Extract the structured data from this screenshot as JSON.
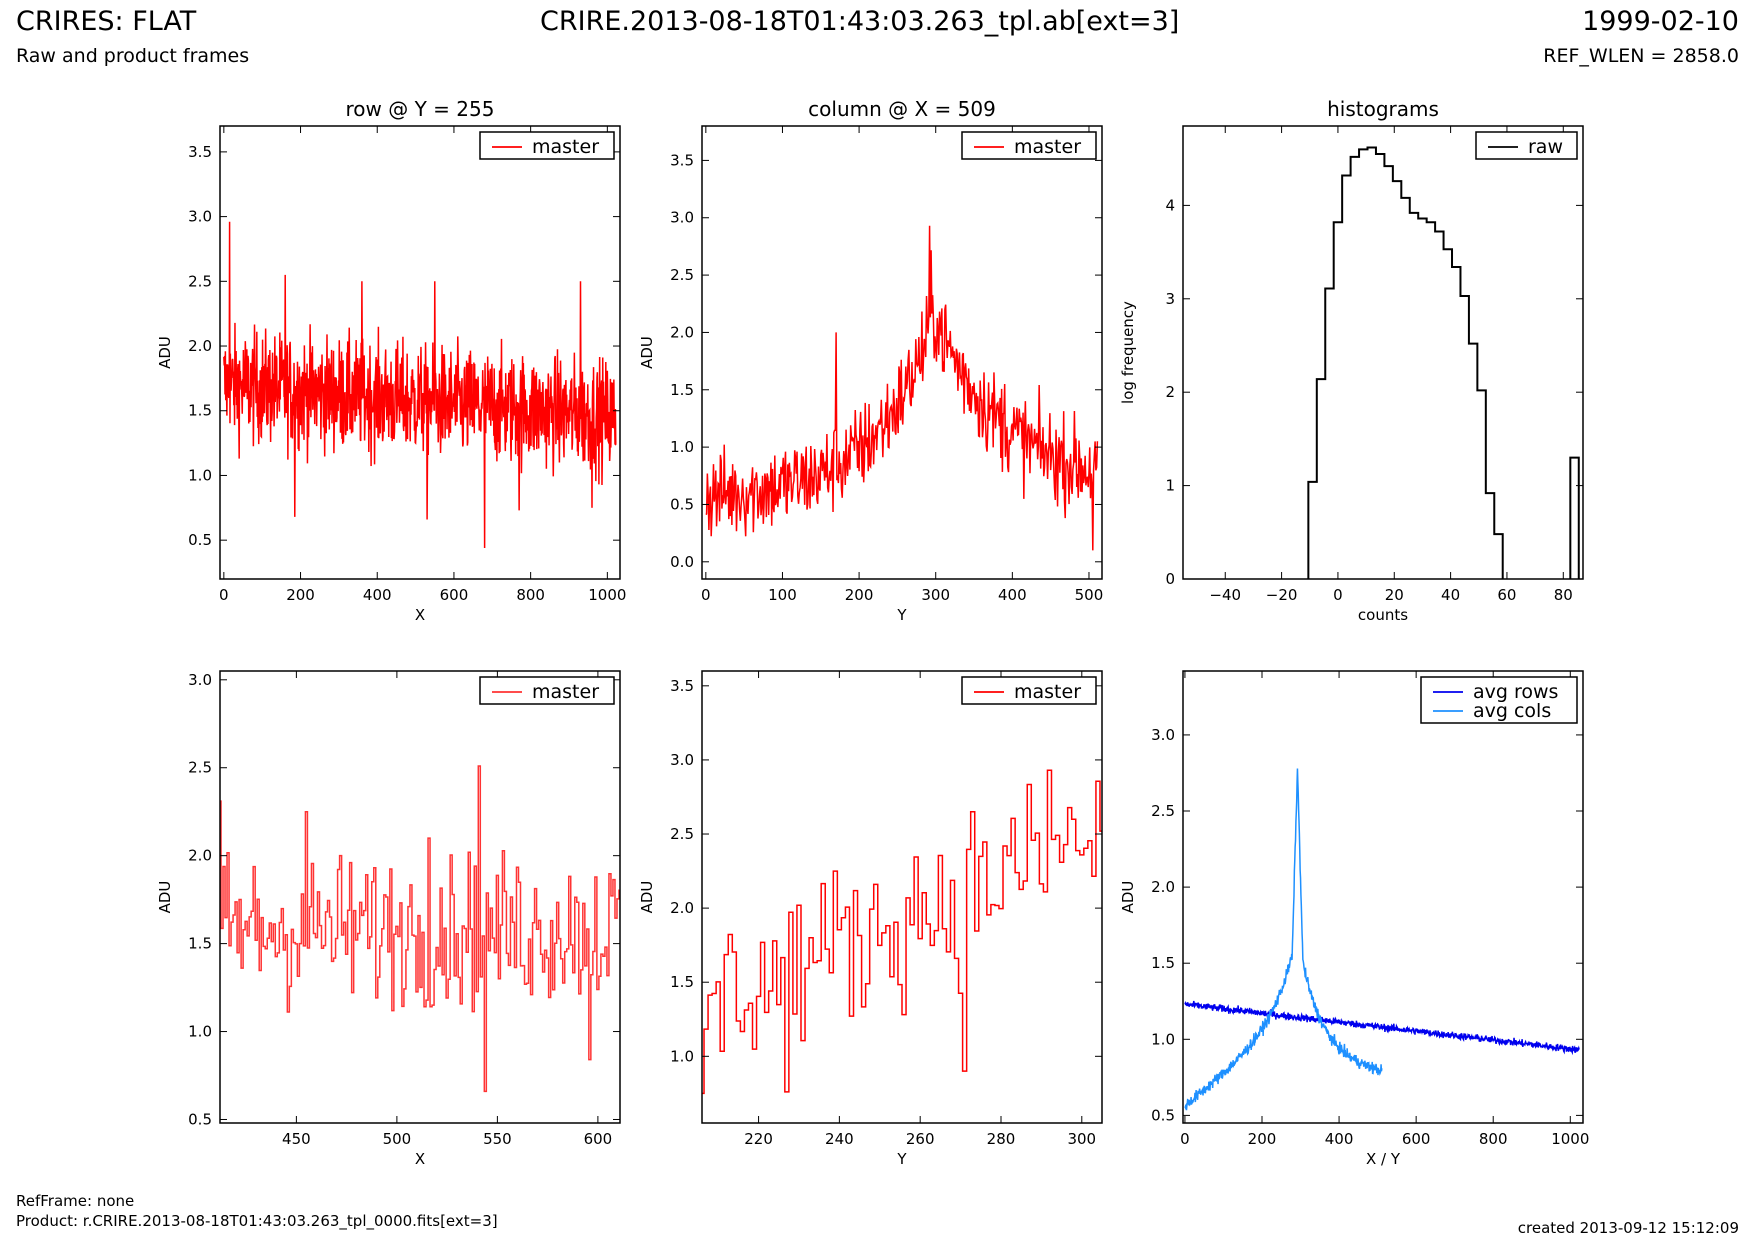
{
  "header": {
    "title": "CRIRES: FLAT",
    "subtitle": "Raw and product frames",
    "file": "CRIRE.2013-08-18T01:43:03.263_tpl.ab[ext=3]",
    "date": "1999-02-10",
    "ref_wlen": "REF_WLEN = 2858.0"
  },
  "footer": {
    "refframe": "RefFrame: none",
    "product": "Product: r.CRIRE.2013-08-18T01:43:03.263_tpl_0000.fits[ext=3]",
    "created": "created 2013-09-12 15:12:09"
  },
  "colors": {
    "master": "#ff0000",
    "master_zoom": "#ff3333",
    "raw": "#000000",
    "avg_rows": "#0000ee",
    "avg_cols": "#1e90ff"
  },
  "chart_data": [
    {
      "id": "row",
      "type": "line",
      "title": "row @ Y = 255",
      "xlabel": "X",
      "ylabel": "ADU",
      "xlim": [
        -10,
        1033
      ],
      "ylim": [
        0.2,
        3.7
      ],
      "xticks": [
        0,
        200,
        400,
        600,
        800,
        1000
      ],
      "yticks": [
        0.5,
        1.0,
        1.5,
        2.0,
        2.5,
        3.0,
        3.5
      ],
      "legend": "top-right",
      "series": [
        {
          "name": "master",
          "color": "#ff0000",
          "style": "line",
          "n": 1024,
          "base_start": 1.7,
          "base_end": 1.45,
          "noise": 0.22,
          "spikes": [
            [
              15,
              2.96
            ],
            [
              160,
              2.55
            ],
            [
              360,
              2.5
            ],
            [
              550,
              2.5
            ],
            [
              930,
              2.5
            ],
            [
              530,
              0.66
            ],
            [
              680,
              0.44
            ],
            [
              185,
              0.68
            ],
            [
              770,
              0.73
            ],
            [
              960,
              0.75
            ]
          ]
        }
      ]
    },
    {
      "id": "column",
      "type": "line",
      "title": "column @ X = 509",
      "xlabel": "Y",
      "ylabel": "ADU",
      "xlim": [
        -5,
        517
      ],
      "ylim": [
        -0.15,
        3.8
      ],
      "xticks": [
        0,
        100,
        200,
        300,
        400,
        500
      ],
      "yticks": [
        0.0,
        0.5,
        1.0,
        1.5,
        2.0,
        2.5,
        3.0,
        3.5
      ],
      "legend": "top-right",
      "series": [
        {
          "name": "master",
          "color": "#ff0000",
          "style": "line",
          "n": 512,
          "peak_at": 292,
          "peak": 2.9,
          "noise": 0.2,
          "spikes": [
            [
              292,
              2.93
            ],
            [
              170,
              2.0
            ],
            [
              390,
              1.55
            ],
            [
              505,
              0.1
            ]
          ]
        }
      ]
    },
    {
      "id": "histograms",
      "type": "bar",
      "title": "histograms",
      "xlabel": "counts",
      "ylabel": "log frequency",
      "xlim": [
        -55,
        87
      ],
      "ylim": [
        0,
        4.85
      ],
      "xticks": [
        -40,
        -20,
        0,
        20,
        40,
        60,
        80
      ],
      "yticks": [
        0,
        1,
        2,
        3,
        4
      ],
      "legend": "top-right",
      "series": [
        {
          "name": "raw",
          "color": "#000000",
          "style": "steps",
          "bin_width": 3,
          "bins": [
            [
              -9,
              1.04
            ],
            [
              -6,
              2.14
            ],
            [
              -3,
              3.11
            ],
            [
              0,
              3.82
            ],
            [
              3,
              4.32
            ],
            [
              6,
              4.52
            ],
            [
              9,
              4.6
            ],
            [
              12,
              4.62
            ],
            [
              15,
              4.55
            ],
            [
              18,
              4.42
            ],
            [
              21,
              4.26
            ],
            [
              24,
              4.08
            ],
            [
              27,
              3.92
            ],
            [
              30,
              3.86
            ],
            [
              33,
              3.82
            ],
            [
              36,
              3.72
            ],
            [
              39,
              3.53
            ],
            [
              42,
              3.34
            ],
            [
              45,
              3.03
            ],
            [
              48,
              2.52
            ],
            [
              51,
              2.02
            ],
            [
              54,
              0.92
            ],
            [
              57,
              0.48
            ],
            [
              84,
              1.3
            ]
          ]
        }
      ]
    },
    {
      "id": "row-zoom",
      "type": "line",
      "title": "",
      "xlabel": "X",
      "ylabel": "ADU",
      "xlim": [
        412,
        611
      ],
      "ylim": [
        0.48,
        3.05
      ],
      "xticks": [
        450,
        500,
        550,
        600
      ],
      "yticks": [
        0.5,
        1.0,
        1.5,
        2.0,
        2.5,
        3.0
      ],
      "legend": "top-right",
      "series": [
        {
          "name": "master",
          "color": "#ff3333",
          "style": "steps",
          "x_start": 412,
          "n": 200,
          "base": 1.58,
          "noise": 0.22,
          "spikes": [
            [
              412,
              2.31
            ],
            [
              541,
              2.51
            ],
            [
              544,
              0.66
            ],
            [
              455,
              2.25
            ],
            [
              516,
              2.1
            ],
            [
              596,
              0.84
            ],
            [
              518,
              1.15
            ]
          ]
        }
      ]
    },
    {
      "id": "column-zoom",
      "type": "line",
      "title": "",
      "xlabel": "Y",
      "ylabel": "ADU",
      "xlim": [
        206,
        305
      ],
      "ylim": [
        0.55,
        3.6
      ],
      "xticks": [
        220,
        240,
        260,
        280,
        300
      ],
      "yticks": [
        1.0,
        1.5,
        2.0,
        2.5,
        3.0,
        3.5
      ],
      "legend": "top-right",
      "series": [
        {
          "name": "master",
          "color": "#ff0000",
          "style": "steps",
          "x_start": 206,
          "n": 100,
          "base_start": 1.35,
          "base_end": 2.5,
          "noise": 0.28,
          "spikes": [
            [
              206,
              0.75
            ],
            [
              227,
              0.76
            ],
            [
              292,
              2.93
            ],
            [
              271,
              0.9
            ],
            [
              273,
              2.65
            ]
          ]
        }
      ]
    },
    {
      "id": "averages",
      "type": "line",
      "title": "",
      "xlabel": "X / Y",
      "ylabel": "ADU",
      "xlim": [
        -5,
        1033
      ],
      "ylim": [
        0.45,
        3.42
      ],
      "xticks": [
        0,
        200,
        400,
        600,
        800,
        1000
      ],
      "yticks": [
        0.5,
        1.0,
        1.5,
        2.0,
        2.5,
        3.0
      ],
      "legend": "top-right",
      "series": [
        {
          "name": "avg rows",
          "color": "#0000ee",
          "style": "line",
          "n": 1024,
          "start": 1.23,
          "end": 0.93,
          "noise": 0.012
        },
        {
          "name": "avg cols",
          "color": "#1e90ff",
          "style": "line",
          "n": 512,
          "start": 0.56,
          "peak_at": 292,
          "peak": 2.78,
          "end": 0.72,
          "noise": 0.02
        }
      ]
    }
  ]
}
